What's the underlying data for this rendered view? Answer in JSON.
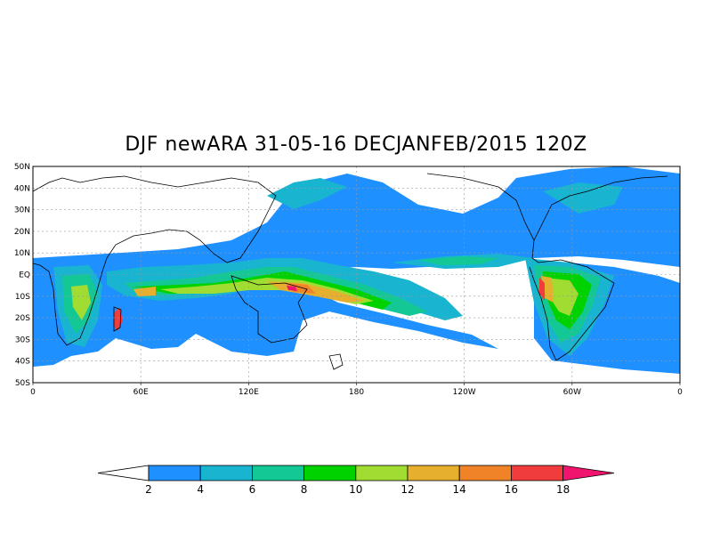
{
  "title": "DJF newARA 31-05-16 DECJANFEB/2015 120Z",
  "map": {
    "lat_labels": [
      "50N",
      "40N",
      "30N",
      "20N",
      "10N",
      "EQ",
      "10S",
      "20S",
      "30S",
      "40S",
      "50S"
    ],
    "lon_labels": [
      "0",
      "60E",
      "120E",
      "180",
      "120W",
      "60W",
      "0"
    ],
    "lat_range": [
      -50,
      50
    ],
    "lon_range": [
      0,
      360
    ],
    "grid": "dashed"
  },
  "colorbar": {
    "labels": [
      "2",
      "4",
      "6",
      "8",
      "10",
      "12",
      "14",
      "16",
      "18"
    ],
    "colors": [
      "#ffffff",
      "#1e90ff",
      "#18b4d0",
      "#14c896",
      "#00d200",
      "#a0dc32",
      "#e6af2d",
      "#f08228",
      "#f03c3c",
      "#f0146e"
    ]
  }
}
